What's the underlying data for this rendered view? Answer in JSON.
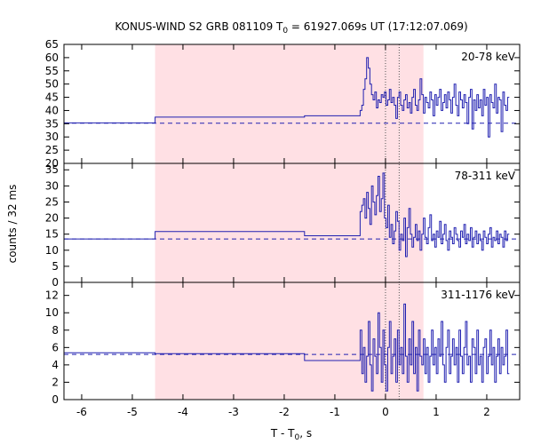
{
  "chart_data": {
    "type": "line",
    "title": {
      "prefix": "KONUS-WIND S2 GRB 081109 T",
      "sub": "0",
      "suffix": " = 61927.069s UT (17:12:07.069)"
    },
    "xlabel": {
      "prefix": "T - T",
      "sub": "0",
      "suffix": ", s"
    },
    "ylabel": "counts / 32 ms",
    "xlim": [
      -6.35,
      2.65
    ],
    "x_ticks": [
      -6,
      -5,
      -4,
      -3,
      -2,
      -1,
      0,
      1,
      2
    ],
    "shaded_interval": [
      -4.55,
      0.75
    ],
    "shaded_color": "#ffe0e4",
    "vertical_markers": [
      0.0,
      0.27
    ],
    "line_color": "#2020b0",
    "panels": [
      {
        "band": "20-78 keV",
        "ylim": [
          20,
          65
        ],
        "y_ticks": [
          20,
          25,
          30,
          35,
          40,
          45,
          50,
          55,
          60,
          65
        ],
        "background": 35.2,
        "steps": [
          {
            "x0": -6.35,
            "x1": -4.55,
            "y": 35.3
          },
          {
            "x0": -4.55,
            "x1": -1.6,
            "y": 37.5
          },
          {
            "x0": -1.6,
            "x1": -0.5,
            "y": 38.0
          }
        ],
        "fine": {
          "x0": -0.5,
          "dx": 0.032,
          "values": [
            40,
            42,
            48,
            52,
            60,
            56,
            50,
            46,
            44,
            47,
            41,
            44,
            43,
            46,
            45,
            47,
            42,
            44,
            48,
            43,
            45,
            42,
            37,
            45,
            47,
            42,
            40,
            44,
            46,
            41,
            43,
            39,
            45,
            48,
            42,
            40,
            44,
            52,
            46,
            39,
            45,
            43,
            41,
            47,
            44,
            38,
            46,
            42,
            45,
            48,
            40,
            43,
            46,
            41,
            47,
            44,
            39,
            45,
            50,
            42,
            38,
            47,
            44,
            41,
            46,
            43,
            35,
            45,
            48,
            33,
            44,
            40,
            46,
            41,
            44,
            38,
            48,
            42,
            45,
            30,
            46,
            43,
            41,
            50,
            39,
            45,
            44,
            32,
            47,
            42,
            40,
            45
          ]
        }
      },
      {
        "band": "78-311 keV",
        "ylim": [
          0,
          37
        ],
        "y_ticks": [
          0,
          5,
          10,
          15,
          20,
          25,
          30,
          35
        ],
        "background": 13.5,
        "steps": [
          {
            "x0": -6.35,
            "x1": -4.55,
            "y": 13.5
          },
          {
            "x0": -4.55,
            "x1": -1.6,
            "y": 15.8
          },
          {
            "x0": -1.6,
            "x1": -0.5,
            "y": 14.5
          }
        ],
        "fine": {
          "x0": -0.5,
          "dx": 0.032,
          "values": [
            22,
            24,
            26,
            20,
            28,
            23,
            18,
            30,
            25,
            21,
            27,
            33,
            22,
            26,
            34,
            20,
            17,
            24,
            14,
            18,
            12,
            16,
            22,
            19,
            10,
            15,
            13,
            20,
            8,
            17,
            23,
            15,
            11,
            14,
            18,
            13,
            16,
            10,
            15,
            20,
            14,
            12,
            17,
            21,
            13,
            15,
            11,
            16,
            14,
            19,
            12,
            15,
            18,
            13,
            10,
            16,
            14,
            12,
            17,
            15,
            13,
            11,
            16,
            14,
            18,
            12,
            15,
            13,
            17,
            11,
            14,
            16,
            12,
            15,
            13,
            10,
            16,
            14,
            12,
            15,
            17,
            11,
            14,
            13,
            16,
            12,
            15,
            14,
            11,
            16,
            13,
            15
          ]
        }
      },
      {
        "band": "311-1176 keV",
        "ylim": [
          0,
          13.5
        ],
        "y_ticks": [
          0,
          2,
          4,
          6,
          8,
          10,
          12
        ],
        "background": 5.2,
        "steps": [
          {
            "x0": -6.35,
            "x1": -4.55,
            "y": 5.4
          },
          {
            "x0": -4.55,
            "x1": -1.6,
            "y": 5.3
          },
          {
            "x0": -1.6,
            "x1": -0.5,
            "y": 4.5
          }
        ],
        "fine": {
          "x0": -0.5,
          "dx": 0.032,
          "values": [
            8,
            3,
            6,
            2,
            5,
            9,
            4,
            1,
            7,
            5,
            3,
            10,
            6,
            2,
            8,
            4,
            1,
            6,
            9,
            3,
            5,
            7,
            2,
            8,
            4,
            6,
            3,
            11,
            5,
            2,
            7,
            4,
            9,
            3,
            6,
            1,
            8,
            5,
            4,
            7,
            3,
            6,
            2,
            5,
            8,
            4,
            6,
            3,
            7,
            5,
            9,
            4,
            2,
            6,
            8,
            3,
            5,
            7,
            4,
            6,
            2,
            8,
            5,
            3,
            6,
            9,
            4,
            5,
            2,
            7,
            6,
            3,
            8,
            4,
            5,
            2,
            6,
            7,
            3,
            5,
            8,
            4,
            6,
            2,
            5,
            7,
            3,
            6,
            4,
            5,
            8,
            3
          ]
        }
      }
    ]
  }
}
